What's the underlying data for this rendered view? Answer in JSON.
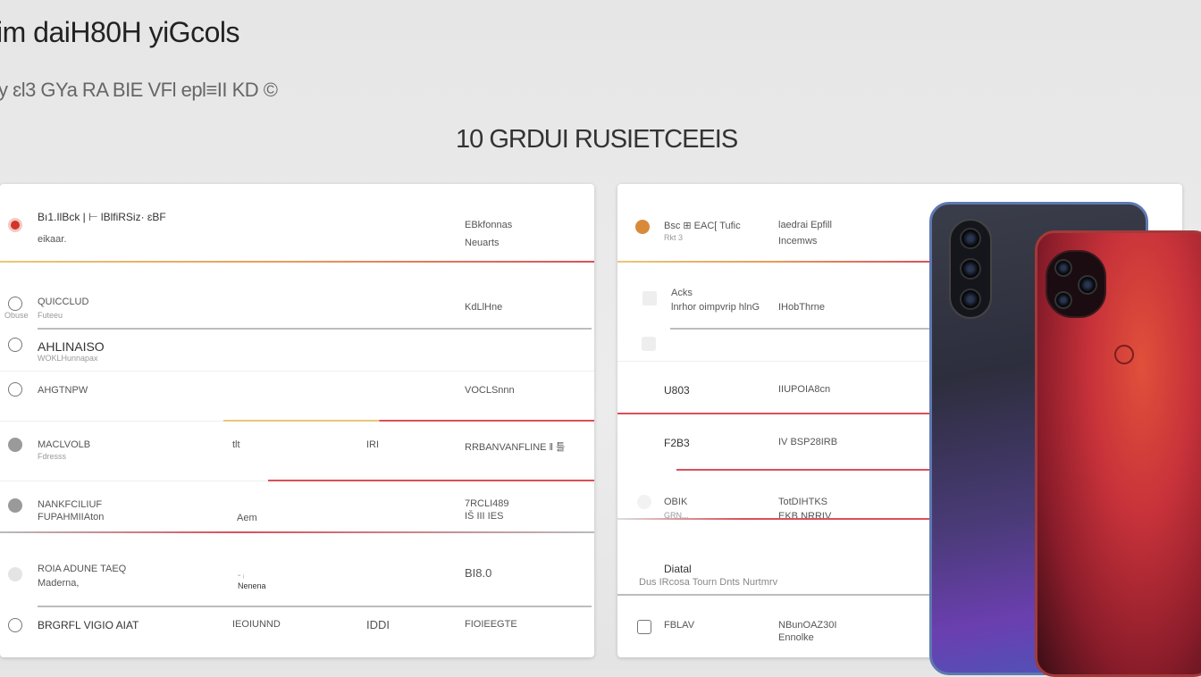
{
  "header": {
    "title": "im daiH80H yiGcols",
    "subtitle": "y ɛl3 GYa RA BIE VFl epl≡II KD ©",
    "section_title": "10 GRDUI RUSIETCEEIS"
  },
  "left_card": {
    "rows": [
      {
        "title": "Bı1.IlBck | ⊢ lBlfiRSiz· ɛBF",
        "sub": "eikaar.",
        "col3": "EBkfonnas",
        "col3b": "Neuarts"
      },
      {
        "title": "QUICCLUD",
        "sub": "Futeeu",
        "col3": "KdLlHne",
        "icon_label": "Obuse"
      },
      {
        "title": "AHLINAISO",
        "sub": "WOKLHunnapax"
      },
      {
        "title": "AHGTNPW",
        "col3": "VOCLSnnn"
      },
      {
        "title": "MACLVOLB",
        "sub": "Fdresss",
        "col1": "tlt",
        "col2": "IRI",
        "col3": "RRBANVANFLINE ǁ 틀"
      },
      {
        "title": "NANKFCILIUF",
        "sub": "FUPAHMIIAton",
        "col1": "Aem",
        "col3": "7RCLI489",
        "col3b": "IŠ III IES"
      },
      {
        "title": "ROIA ADUNE TAEQ",
        "sub": "Maderna,",
        "col1": "ᵕ ᵢ",
        "col1b": "Nenena",
        "col3": "BI8.0"
      },
      {
        "title": "BRGRFL VIGIO AIAT",
        "col1": "IEOIUNND",
        "col2": "IDDI",
        "col3": "FIOIEEGTE"
      }
    ]
  },
  "right_card": {
    "rows": [
      {
        "title": "Bsc ⊞ EAC[ Tufic",
        "sub": "Rkt 3",
        "col3": "laedrai Epfill",
        "col3b": "Incemws"
      },
      {
        "title": "Acks",
        "sub": "lnrhor oimpvrip hlnG",
        "col3": "IHobThrne"
      },
      {
        "title": "U803",
        "col3": "IIUPOIA8cn"
      },
      {
        "title": "F2B3",
        "col3": "IV BSP28IRB"
      },
      {
        "title": "OBIK",
        "sub": "GRN...",
        "col3": "TotDIHTKS",
        "col3b": "EKB NRRIV"
      },
      {
        "title": "Diatal",
        "sub": "Dus IRcosa Tourn Dnts Nurtmrv"
      },
      {
        "title": "FBLAV",
        "col3": "NBunOAZ30I",
        "col3b": "Ennolke"
      }
    ]
  },
  "colors": {
    "accent_red": "#d9505a",
    "accent_yellow": "#e8c77a",
    "orange_dot": "#d88a3a",
    "red_icon": "#d2352a"
  }
}
